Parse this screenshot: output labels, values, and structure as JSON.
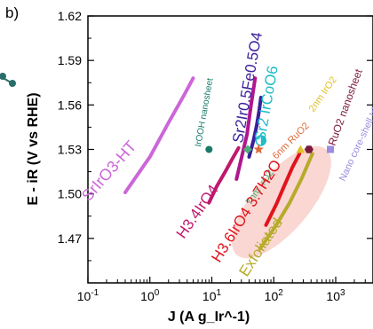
{
  "panel_label": "b)",
  "chart_data": {
    "type": "line",
    "xlabel": "J (A g_Ir^-1)",
    "ylabel": "E - iR (V vs RHE)",
    "x_scale": "log",
    "xlim": [
      0.1,
      4000
    ],
    "ylim": [
      1.44,
      1.62
    ],
    "x_ticks": [
      0.1,
      1,
      10,
      100,
      1000
    ],
    "x_tick_labels": [
      "10-1",
      "100",
      "101",
      "102",
      "103"
    ],
    "y_ticks": [
      1.47,
      1.5,
      1.53,
      1.56,
      1.59,
      1.62
    ],
    "y_tick_labels": [
      "1.47",
      "1.50",
      "1.53",
      "1.56",
      "1.59",
      "1.62"
    ],
    "grid": false,
    "series": [
      {
        "name": "SrIrO3-HT",
        "color": "#cc66d9",
        "x": [
          0.4,
          1.0,
          2.0,
          3.5,
          5.0
        ],
        "y": [
          1.501,
          1.525,
          1.548,
          1.566,
          1.578
        ]
      },
      {
        "name": "H3.4IrO4",
        "color": "#c0186e",
        "x": [
          9,
          12,
          16,
          21,
          27
        ],
        "y": [
          1.494,
          1.505,
          1.514,
          1.523,
          1.531
        ]
      },
      {
        "name": "Sr2Ir0.5Fe0.5O4",
        "color": "#3a1f9c",
        "x": [
          40,
          47,
          53,
          58,
          62
        ],
        "y": [
          1.525,
          1.536,
          1.546,
          1.556,
          1.565
        ]
      },
      {
        "name": "Sr2IrCoO6",
        "color": "#b0168e",
        "x": [
          25,
          30,
          37,
          43,
          50
        ],
        "y": [
          1.51,
          1.524,
          1.54,
          1.56,
          1.578
        ]
      },
      {
        "name": "H3.6IrO4 3.7H2O",
        "color": "#e0141c",
        "x": [
          75,
          110,
          150,
          200,
          260
        ],
        "y": [
          1.479,
          1.493,
          1.506,
          1.518,
          1.527
        ]
      },
      {
        "name": "Exfoliated",
        "color": "#b6ab2c",
        "x": [
          60,
          110,
          180,
          280,
          420
        ],
        "y": [
          1.463,
          1.479,
          1.494,
          1.51,
          1.527
        ]
      }
    ],
    "points": [
      {
        "name": "IrOOH nanosheet",
        "x": 9,
        "y": 1.53,
        "color": "#1a7a6a",
        "shape": "circle"
      },
      {
        "name": "7nm IrO2",
        "x": 38,
        "y": 1.53,
        "color": "#4caf7a",
        "shape": "diamond"
      },
      {
        "name": "Sr2IrCoO6",
        "x": 62,
        "y": 1.536,
        "color": "#20bcc8",
        "shape": "half-circle"
      },
      {
        "name": "6nm RuO2",
        "x": 57,
        "y": 1.53,
        "color": "#e06a3c",
        "shape": "star"
      },
      {
        "name": "2nm IrO2",
        "x": 270,
        "y": 1.53,
        "color": "#e0c02a",
        "shape": "triangle"
      },
      {
        "name": "RuO2 nanosheet",
        "x": 370,
        "y": 1.53,
        "color": "#7a1a3a",
        "shape": "hexagon"
      },
      {
        "name": "Nano core-shell IrNiOx",
        "x": 820,
        "y": 1.53,
        "color": "#9a8ce0",
        "shape": "square"
      }
    ],
    "annotations": [
      {
        "text": "SrIrO3-HT",
        "color": "#cc66d9"
      },
      {
        "text": "H3.4IrO4",
        "color": "#c0186e"
      },
      {
        "text": "Sr2Ir0.5Fe0.5O4",
        "color": "#3a1f9c"
      },
      {
        "text": "Sr2 IrCoO6",
        "color": "#20bcc8"
      },
      {
        "text": "IrOOH nanosheet",
        "color": "#1a7a6a"
      },
      {
        "text": "7nm IrO2",
        "color": "#4caf7a"
      },
      {
        "text": "6nm RuO2",
        "color": "#e06a3c"
      },
      {
        "text": "2nm IrO2",
        "color": "#e0c02a"
      },
      {
        "text": "RuO2 nanosheet",
        "color": "#7a1a3a"
      },
      {
        "text": "Nano core-shell IrNiOx",
        "color": "#9a8ce0"
      },
      {
        "text": "H3.6IrO4 3.7H2O",
        "color": "#e0141c"
      },
      {
        "text": "Exfoliated",
        "color": "#b6ab2c"
      }
    ],
    "highlight_color": "#f8c9c4"
  }
}
